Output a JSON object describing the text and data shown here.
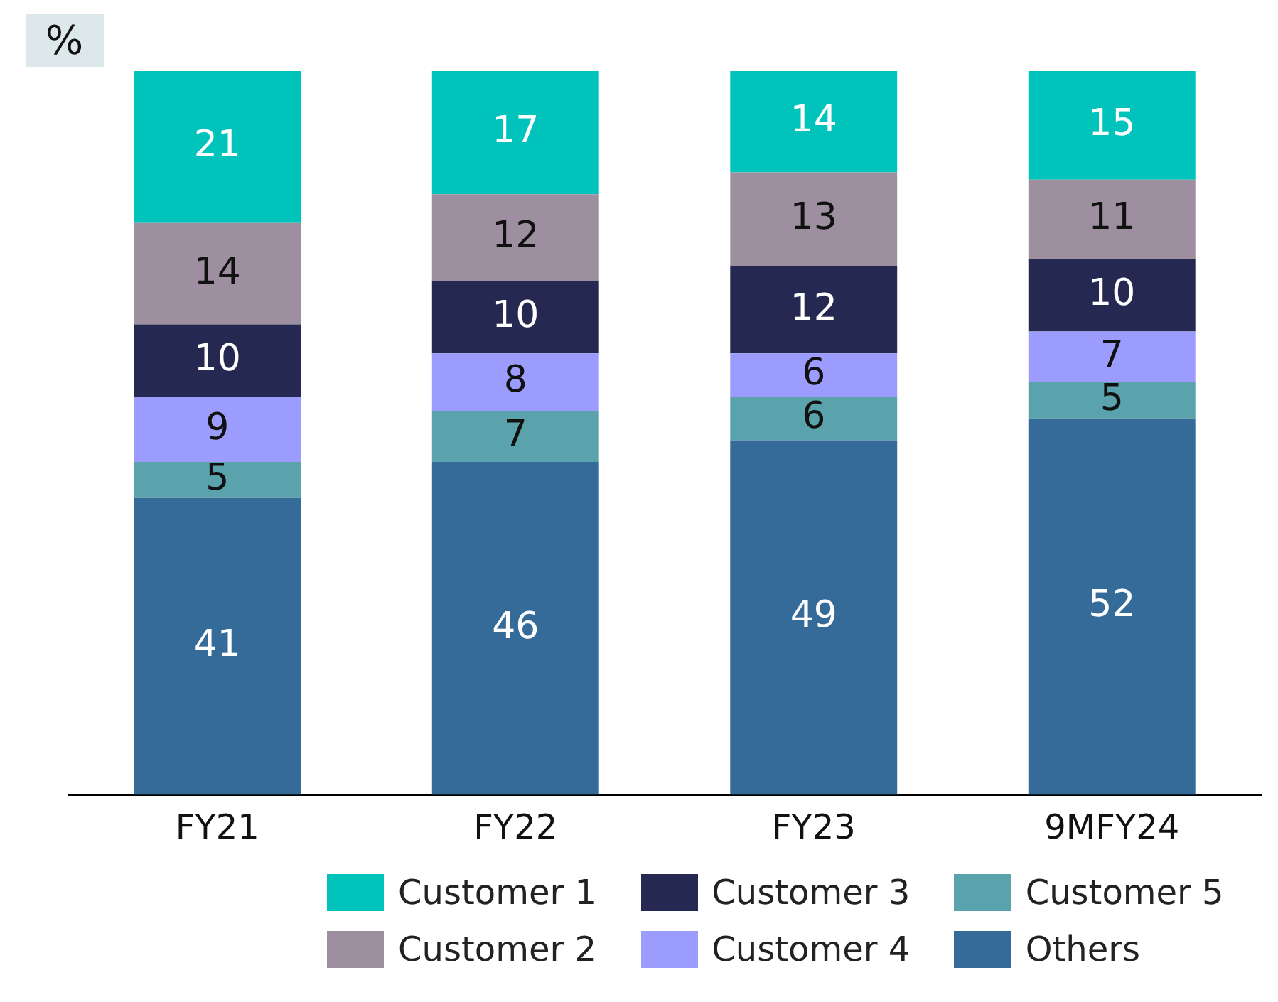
{
  "chart_data": {
    "type": "bar",
    "stacked": true,
    "ylabel": "%",
    "categories": [
      "FY21",
      "FY22",
      "FY23",
      "9MFY24"
    ],
    "series": [
      {
        "name": "Others",
        "color": "#356b99",
        "values": [
          41,
          46,
          49,
          52
        ]
      },
      {
        "name": "Customer 5",
        "color": "#5aa3ad",
        "values": [
          5,
          7,
          6,
          5
        ]
      },
      {
        "name": "Customer 4",
        "color": "#9c9cff",
        "values": [
          9,
          8,
          6,
          7
        ]
      },
      {
        "name": "Customer 3",
        "color": "#252850",
        "values": [
          10,
          10,
          12,
          10
        ]
      },
      {
        "name": "Customer 2",
        "color": "#9e8fa0",
        "values": [
          14,
          12,
          13,
          11
        ]
      },
      {
        "name": "Customer 1",
        "color": "#00c4bc",
        "values": [
          21,
          17,
          14,
          15
        ]
      }
    ],
    "ylim": [
      0,
      100
    ],
    "tick_labels": "x",
    "data_labels": true,
    "legend": "bottom"
  }
}
